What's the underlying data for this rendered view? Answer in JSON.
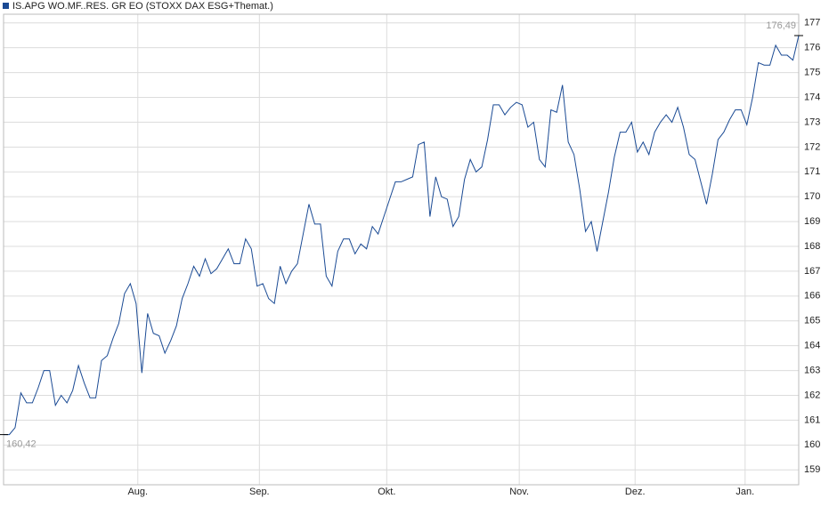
{
  "chart_data": {
    "type": "line",
    "series": [
      {
        "name": "IS.APG WO.MF..RES. GR EO (STOXX DAX ESG+Themat.)",
        "color": "#1a4a94",
        "values": [
          160.42,
          160.42,
          160.7,
          162.1,
          161.7,
          161.7,
          162.3,
          163.0,
          163.0,
          161.6,
          162.0,
          161.7,
          162.2,
          163.2,
          162.5,
          161.9,
          161.9,
          163.4,
          163.6,
          164.3,
          164.9,
          166.1,
          166.5,
          165.7,
          162.9,
          165.3,
          164.5,
          164.4,
          163.7,
          164.2,
          164.8,
          165.9,
          166.5,
          167.2,
          166.8,
          167.5,
          166.9,
          167.1,
          167.5,
          167.9,
          167.3,
          167.3,
          168.3,
          167.9,
          166.4,
          166.5,
          165.9,
          165.7,
          167.2,
          166.5,
          167.0,
          167.3,
          168.5,
          169.7,
          168.9,
          168.9,
          166.8,
          166.4,
          167.8,
          168.3,
          168.3,
          167.7,
          168.1,
          167.9,
          168.8,
          168.5,
          169.2,
          169.9,
          170.6,
          170.6,
          170.7,
          170.8,
          172.1,
          172.2,
          169.2,
          170.8,
          170.0,
          169.9,
          168.8,
          169.2,
          170.7,
          171.5,
          171.0,
          171.2,
          172.3,
          173.7,
          173.7,
          173.3,
          173.6,
          173.8,
          173.7,
          172.8,
          173.0,
          171.5,
          171.2,
          173.5,
          173.4,
          174.5,
          172.2,
          171.7,
          170.3,
          168.6,
          169.0,
          167.8,
          169.0,
          170.2,
          171.6,
          172.6,
          172.6,
          173.0,
          171.8,
          172.2,
          171.7,
          172.6,
          173.0,
          173.3,
          173.0,
          173.6,
          172.8,
          171.7,
          171.5,
          170.6,
          169.7,
          170.9,
          172.3,
          172.6,
          173.1,
          173.5,
          173.5,
          172.9,
          174.0,
          175.4,
          175.3,
          175.3,
          176.1,
          175.7,
          175.7,
          175.5,
          176.49
        ]
      }
    ],
    "xlim": [
      0,
      138
    ],
    "xticks": [
      {
        "value": 23.3,
        "label": "Aug."
      },
      {
        "value": 44.4,
        "label": "Sep."
      },
      {
        "value": 66.5,
        "label": "Okt."
      },
      {
        "value": 89.5,
        "label": "Nov."
      },
      {
        "value": 109.6,
        "label": "Dez."
      },
      {
        "value": 128.7,
        "label": "Jan."
      }
    ],
    "ylim": [
      158.4,
      177.35
    ],
    "yticks": [
      159,
      160,
      161,
      162,
      163,
      164,
      165,
      166,
      167,
      168,
      169,
      170,
      171,
      172,
      173,
      174,
      175,
      176,
      177
    ],
    "grid": true,
    "annotations": [
      {
        "x": 0,
        "y": 160.42,
        "label": "160,42"
      },
      {
        "x": 138,
        "y": 176.49,
        "label": "176,49"
      }
    ]
  }
}
